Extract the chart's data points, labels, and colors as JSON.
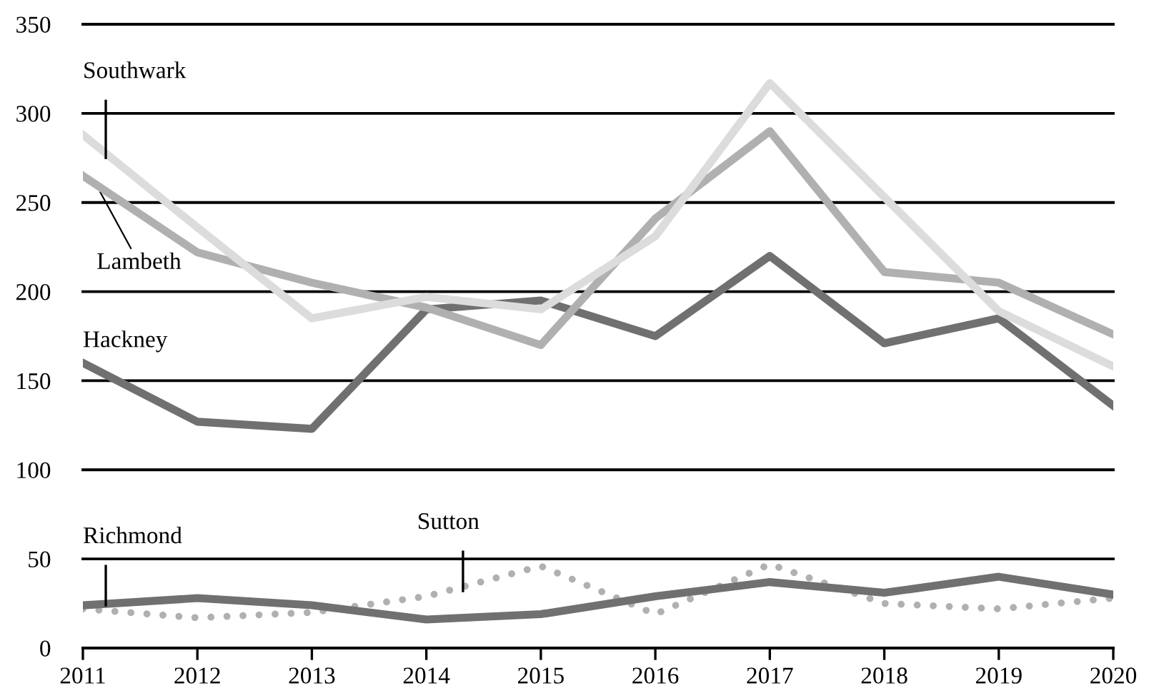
{
  "chart_data": {
    "type": "line",
    "x": [
      2011,
      2012,
      2013,
      2014,
      2015,
      2016,
      2017,
      2018,
      2019,
      2020
    ],
    "series": [
      {
        "name": "Southwark",
        "color": "#dcdcdc",
        "values": [
          288,
          236,
          185,
          197,
          190,
          231,
          317,
          253,
          189,
          158
        ]
      },
      {
        "name": "Lambeth",
        "color": "#b0b0b0",
        "values": [
          265,
          222,
          205,
          191,
          170,
          241,
          290,
          211,
          205,
          176
        ]
      },
      {
        "name": "Hackney",
        "color": "#707070",
        "values": [
          160,
          127,
          123,
          190,
          195,
          175,
          220,
          171,
          185,
          136
        ]
      },
      {
        "name": "Richmond",
        "color": "#707070",
        "values": [
          24,
          28,
          24,
          16,
          19,
          29,
          37,
          31,
          40,
          30
        ]
      },
      {
        "name": "Sutton",
        "color": "#b0b0b0",
        "line_style": "dotted",
        "values": [
          22,
          17,
          20,
          29,
          46,
          19,
          47,
          25,
          22,
          28
        ]
      }
    ],
    "xlim": [
      2011,
      2020
    ],
    "xticks": [
      2011,
      2012,
      2013,
      2014,
      2015,
      2016,
      2017,
      2018,
      2019,
      2020
    ],
    "ylim": [
      0,
      350
    ],
    "yticks": [
      0,
      50,
      100,
      150,
      200,
      250,
      300,
      350
    ],
    "grid": "y",
    "legend": false,
    "marker": "none",
    "line_style": "solid"
  }
}
